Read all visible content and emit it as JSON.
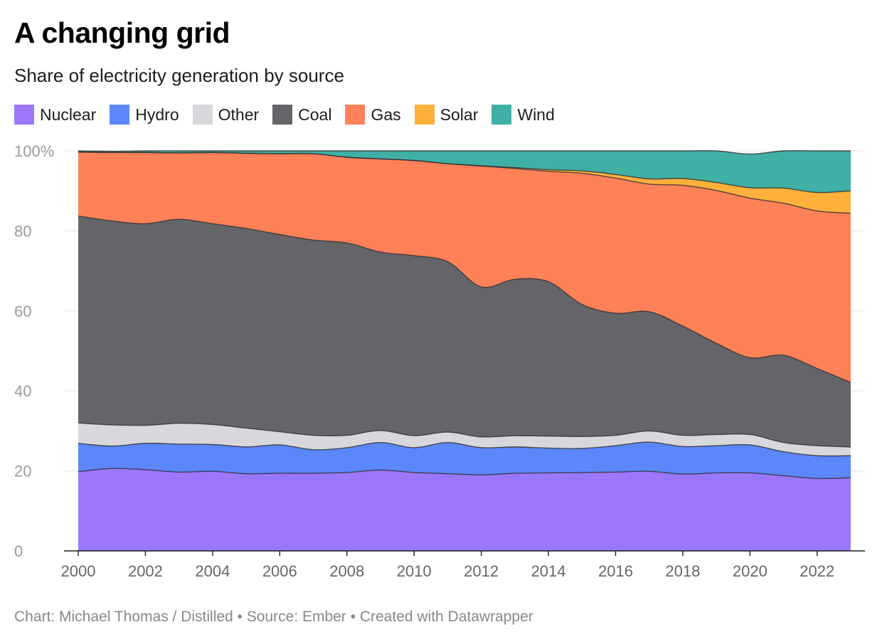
{
  "header": {
    "title": "A changing grid",
    "subtitle": "Share of electricity generation by source"
  },
  "footer": {
    "credit": "Chart: Michael Thomas / Distilled • Source: Ember • Created with Datawrapper"
  },
  "chart_data": {
    "type": "area",
    "stacked": true,
    "title": "A changing grid",
    "subtitle": "Share of electricity generation by source",
    "xlabel": "",
    "ylabel": "",
    "ylim": [
      0,
      100
    ],
    "xlim": [
      2000,
      2023
    ],
    "y_ticks": [
      0,
      20,
      40,
      60,
      80,
      100
    ],
    "y_tick_labels": [
      "0",
      "20",
      "40",
      "60",
      "80",
      "100%"
    ],
    "x_ticks": [
      2000,
      2002,
      2004,
      2006,
      2008,
      2010,
      2012,
      2014,
      2016,
      2018,
      2020,
      2022
    ],
    "x_tick_labels": [
      "2000",
      "2002",
      "2004",
      "2006",
      "2008",
      "2010",
      "2012",
      "2014",
      "2016",
      "2018",
      "2020",
      "2022"
    ],
    "grid": true,
    "legend": "top-left",
    "x": [
      2000,
      2001,
      2002,
      2003,
      2004,
      2005,
      2006,
      2007,
      2008,
      2009,
      2010,
      2011,
      2012,
      2013,
      2014,
      2015,
      2016,
      2017,
      2018,
      2019,
      2020,
      2021,
      2022,
      2023
    ],
    "series": [
      {
        "name": "Nuclear",
        "color": "#9b77fb",
        "values": [
          19.8,
          20.6,
          20.3,
          19.7,
          19.9,
          19.3,
          19.4,
          19.4,
          19.6,
          20.2,
          19.6,
          19.3,
          19.0,
          19.4,
          19.5,
          19.6,
          19.7,
          19.9,
          19.2,
          19.5,
          19.5,
          18.8,
          18.1,
          18.3
        ]
      },
      {
        "name": "Hydro",
        "color": "#5c87fb",
        "values": [
          7.1,
          5.6,
          6.6,
          7.0,
          6.7,
          6.7,
          7.1,
          5.9,
          6.2,
          6.9,
          6.2,
          7.8,
          6.8,
          6.6,
          6.2,
          6.0,
          6.6,
          7.3,
          6.9,
          6.8,
          7.0,
          6.0,
          5.7,
          5.5
        ]
      },
      {
        "name": "Other",
        "color": "#d8d8dc",
        "values": [
          5.1,
          5.3,
          4.5,
          5.2,
          5.0,
          4.7,
          3.3,
          3.6,
          3.1,
          3.0,
          3.0,
          2.6,
          2.7,
          2.8,
          3.0,
          3.0,
          2.6,
          2.8,
          2.8,
          2.8,
          2.6,
          2.3,
          2.5,
          2.2
        ]
      },
      {
        "name": "Coal",
        "color": "#646469",
        "values": [
          51.7,
          51.0,
          50.4,
          51.0,
          50.2,
          49.9,
          49.3,
          48.8,
          48.1,
          44.6,
          45.0,
          42.6,
          37.5,
          39.1,
          38.6,
          33.0,
          30.5,
          29.8,
          27.3,
          22.8,
          19.2,
          21.8,
          19.3,
          16.1
        ]
      },
      {
        "name": "Gas",
        "color": "#ff8158",
        "values": [
          16.0,
          17.1,
          17.8,
          16.6,
          17.8,
          18.8,
          20.2,
          21.6,
          21.4,
          23.3,
          23.8,
          24.5,
          30.2,
          27.7,
          27.6,
          32.8,
          33.8,
          31.9,
          35.2,
          38.2,
          39.9,
          38.0,
          39.4,
          42.3
        ]
      },
      {
        "name": "Solar",
        "color": "#ffb13c",
        "values": [
          0.0,
          0.0,
          0.0,
          0.0,
          0.0,
          0.0,
          0.0,
          0.0,
          0.0,
          0.0,
          0.0,
          0.0,
          0.1,
          0.2,
          0.4,
          0.6,
          0.9,
          1.3,
          1.7,
          2.0,
          2.6,
          3.8,
          4.6,
          5.6
        ]
      },
      {
        "name": "Wind",
        "color": "#40afa5",
        "values": [
          0.3,
          0.3,
          0.4,
          0.5,
          0.4,
          0.6,
          0.7,
          0.7,
          1.6,
          2.0,
          2.4,
          3.2,
          3.7,
          4.2,
          4.7,
          5.0,
          5.9,
          7.0,
          6.9,
          7.9,
          8.4,
          9.3,
          10.4,
          10.0
        ]
      }
    ]
  }
}
